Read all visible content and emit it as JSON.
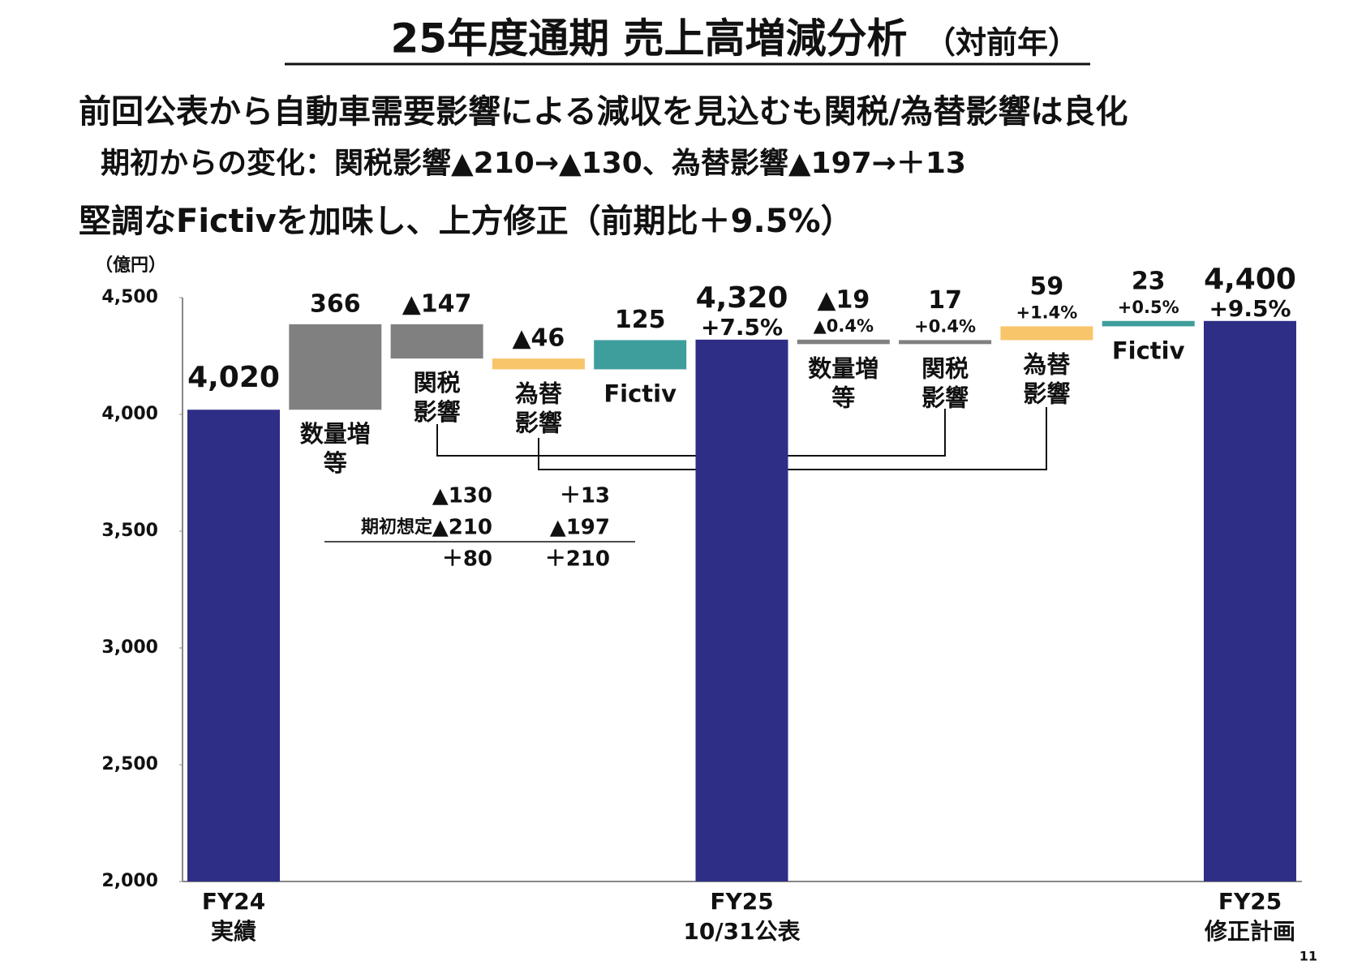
{
  "chart_data": {
    "type": "waterfall",
    "title": "25年度通期 売上高増減分析",
    "title_note": "（対前年）",
    "subtitles": [
      "前回公表から自動車需要影響による減収を見込むも関税/為替影響は良化",
      "期初からの変化：関税影響▲210→▲130、為替影響▲197→＋13",
      "堅調なFictivを加味し、上方修正（前期比＋9.5%）"
    ],
    "y_unit": "（億円）",
    "categories": [
      [
        "FY24",
        "実績"
      ],
      [
        "数量増",
        "等"
      ],
      [
        "関税",
        "影響"
      ],
      [
        "為替",
        "影響"
      ],
      [
        "Fictiv"
      ],
      [
        "FY25",
        "10/31公表"
      ],
      [
        "数量増",
        "等"
      ],
      [
        "関税",
        "影響"
      ],
      [
        "為替",
        "影響"
      ],
      [
        "Fictiv"
      ],
      [
        "FY25",
        "修正計画"
      ]
    ],
    "kinds": [
      "total",
      "delta",
      "delta",
      "delta",
      "delta",
      "total",
      "delta",
      "delta",
      "delta",
      "delta",
      "total"
    ],
    "values": [
      4020,
      366,
      -147,
      -46,
      125,
      4320,
      -19,
      17,
      59,
      23,
      4400
    ],
    "value_labels": [
      "4,020",
      "366",
      "▲147",
      "▲46",
      "125",
      "4,320",
      "▲19",
      "17",
      "59",
      "23",
      "4,400"
    ],
    "pct_labels": [
      null,
      null,
      null,
      null,
      null,
      "+7.5%",
      "▲0.4%",
      "+0.4%",
      "+1.4%",
      "+0.5%",
      "+9.5%"
    ],
    "colors": [
      "#2e2e86",
      "#808080",
      "#808080",
      "#f9c56a",
      "#3e9e9c",
      "#2e2e86",
      "#808080",
      "#808080",
      "#f9c56a",
      "#3e9e9c",
      "#2e2e86"
    ],
    "ylim": [
      2000,
      4500
    ],
    "yticks": [
      {
        "value": 2000,
        "label": "2,000"
      },
      {
        "value": 2500,
        "label": "2,500"
      },
      {
        "value": 3000,
        "label": "3,000"
      },
      {
        "value": 3500,
        "label": "3,500"
      },
      {
        "value": 4000,
        "label": "4,000"
      },
      {
        "value": 4500,
        "label": "4,500"
      }
    ],
    "comparison": {
      "row_label": "期初想定",
      "rows": [
        [
          "▲130",
          "＋13"
        ],
        [
          "▲210",
          "▲197"
        ],
        [
          "＋80",
          "＋210"
        ]
      ]
    },
    "page_number": "11"
  }
}
